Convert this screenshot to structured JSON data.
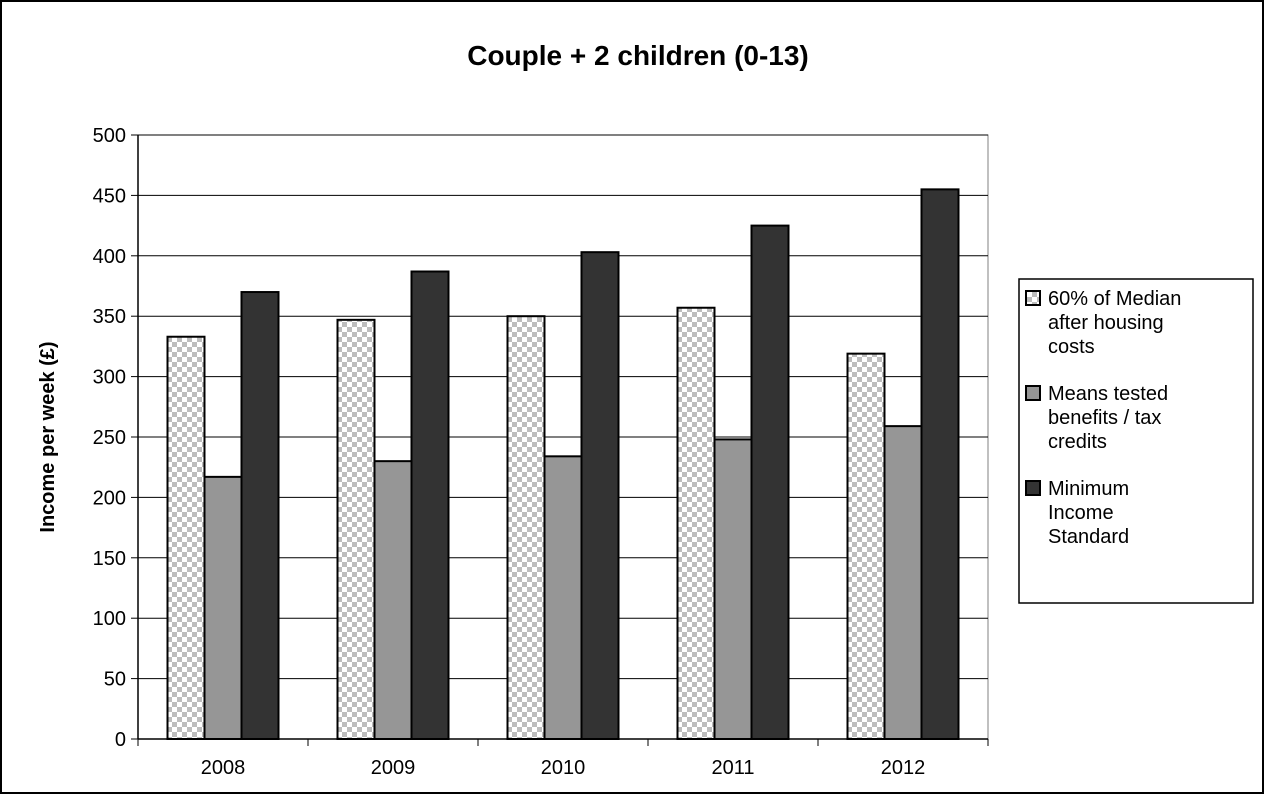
{
  "chart_data": {
    "type": "bar",
    "title": "Couple + 2 children (0-13)",
    "xlabel": "",
    "ylabel": "Income per week (£)",
    "ylim": [
      0,
      500
    ],
    "yticks": [
      0,
      50,
      100,
      150,
      200,
      250,
      300,
      350,
      400,
      450,
      500
    ],
    "grid": true,
    "legend_position": "right",
    "categories": [
      "2008",
      "2009",
      "2010",
      "2011",
      "2012"
    ],
    "series": [
      {
        "name": "60% of Median after housing costs",
        "legend_lines": [
          "60% of Median",
          "after housing",
          "costs"
        ],
        "values": [
          333,
          347,
          350,
          357,
          319
        ],
        "fill": "checkered",
        "color": "#c0c0c0"
      },
      {
        "name": "Means tested benefits / tax credits",
        "legend_lines": [
          "Means tested",
          "benefits / tax",
          "credits"
        ],
        "values": [
          217,
          230,
          234,
          248,
          259
        ],
        "fill": "solid",
        "color": "#969696"
      },
      {
        "name": "Minimum Income Standard",
        "legend_lines": [
          "Minimum",
          "Income",
          "Standard"
        ],
        "values": [
          370,
          387,
          403,
          425,
          455
        ],
        "fill": "solid",
        "color": "#333333"
      }
    ]
  }
}
